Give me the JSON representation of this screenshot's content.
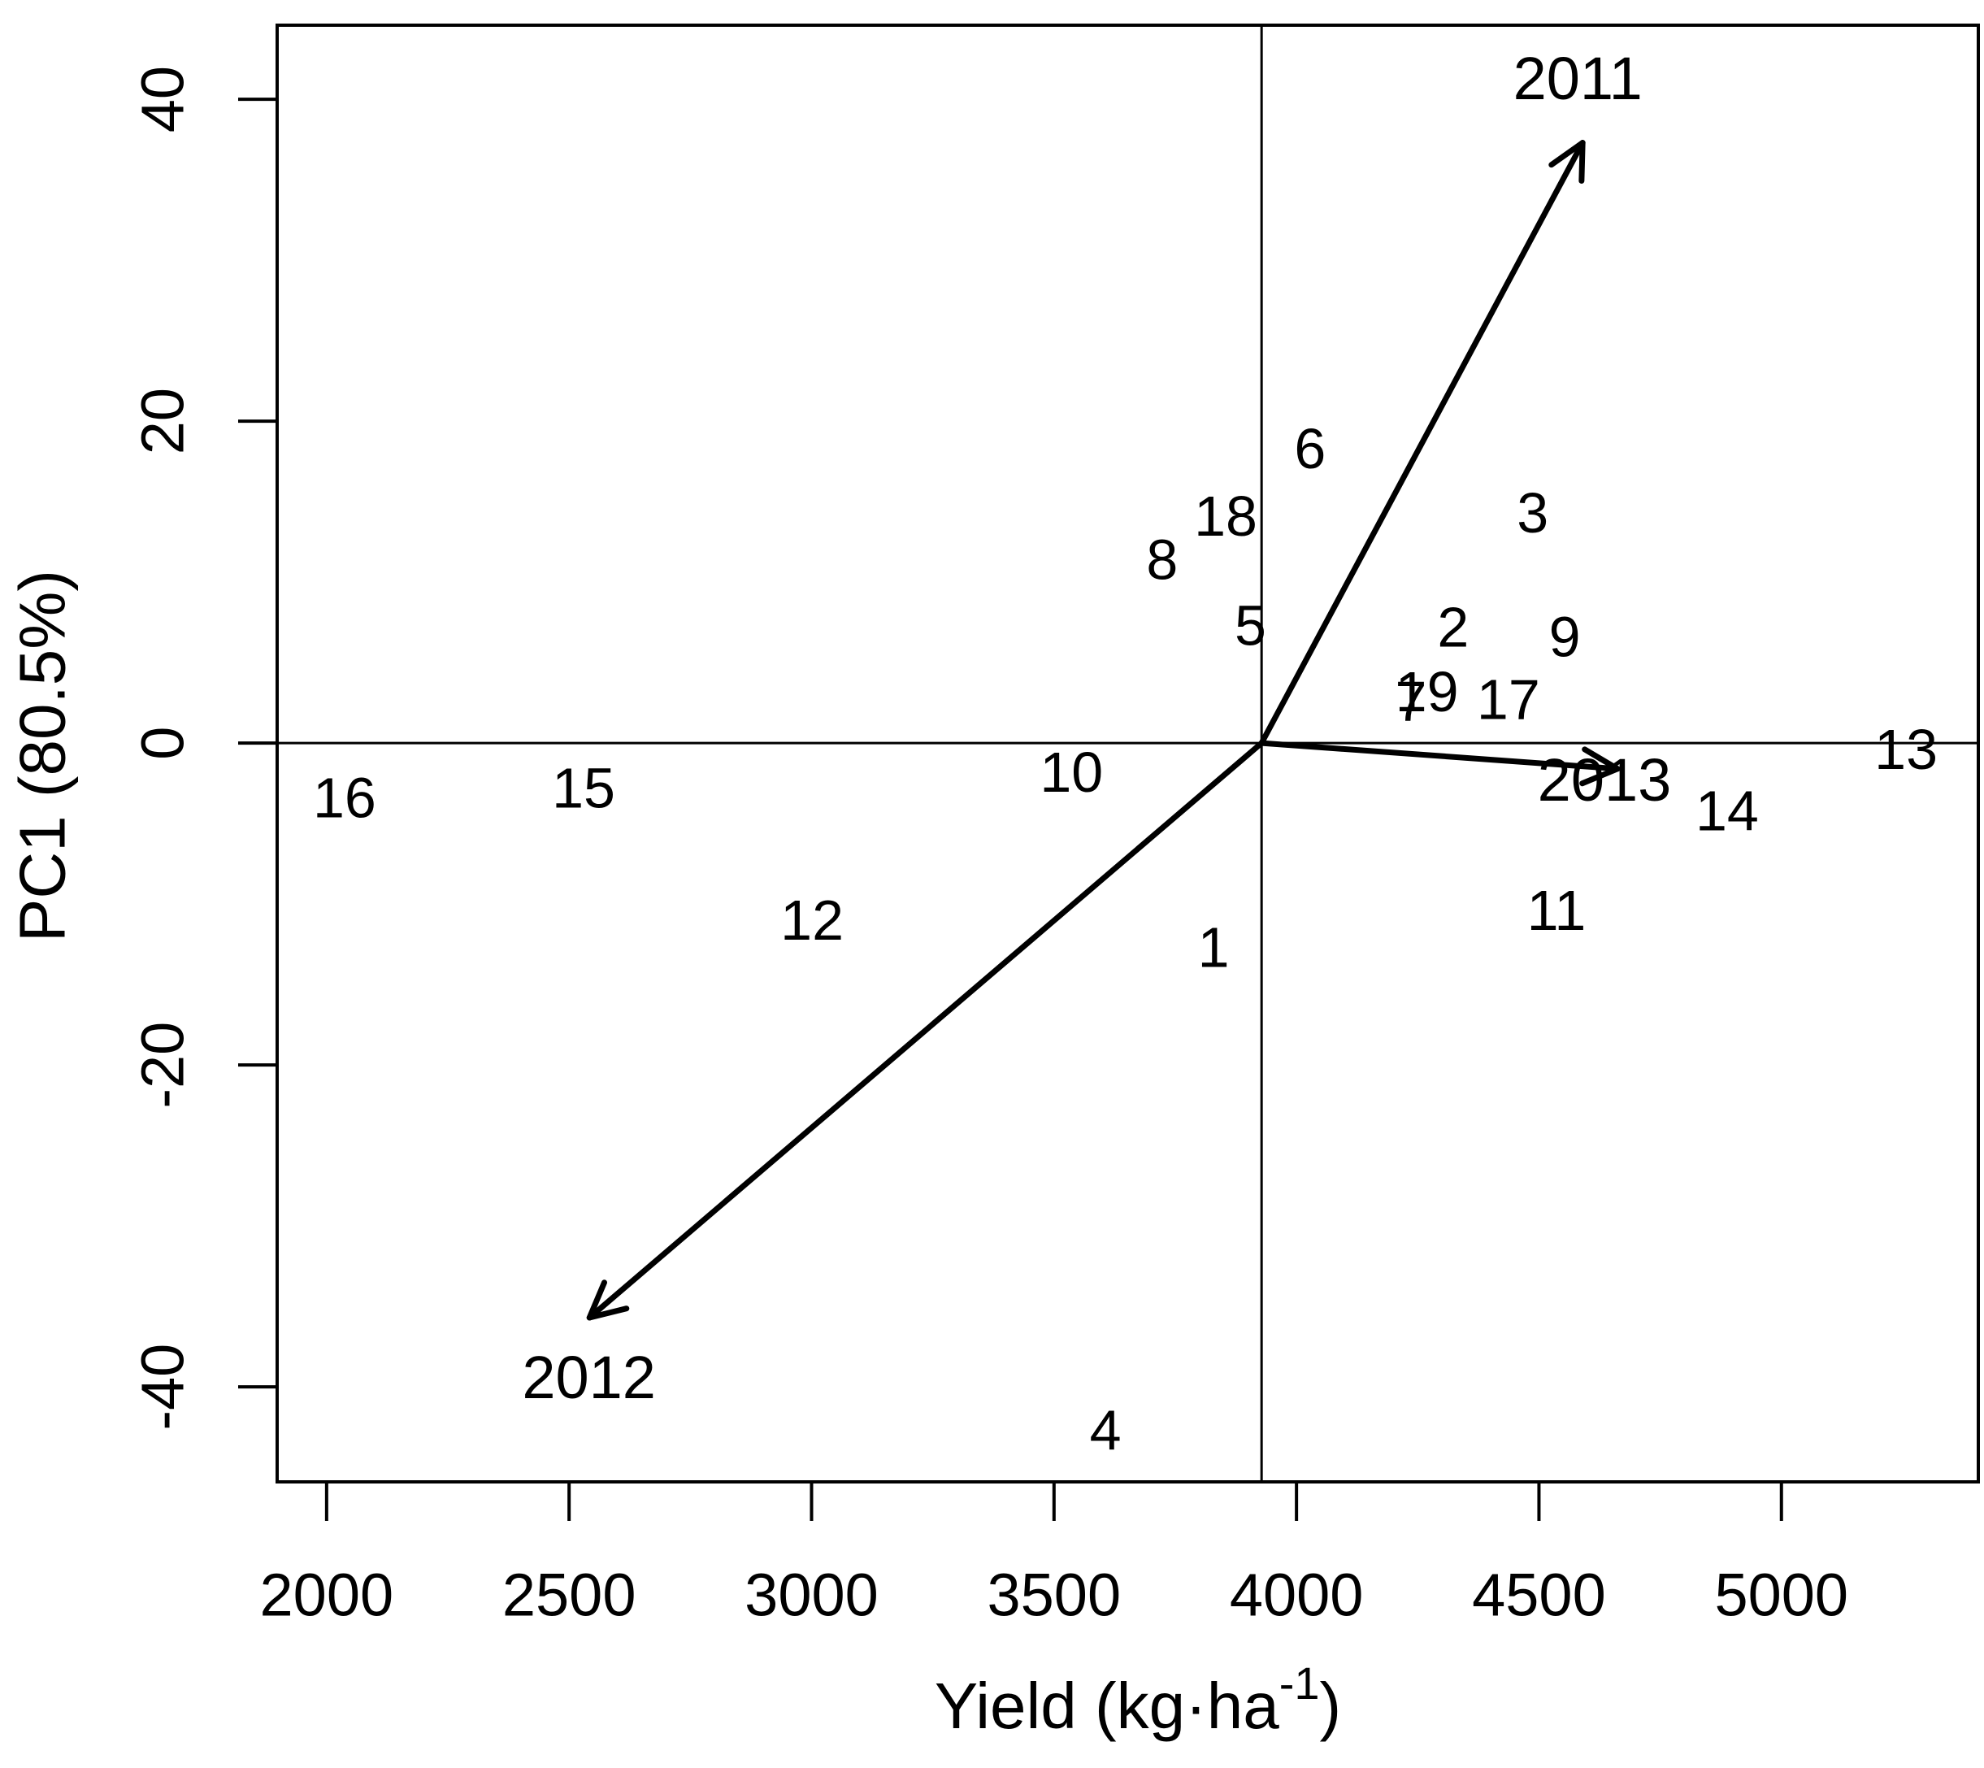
{
  "chart_data": {
    "type": "scatter",
    "subtype": "pca-biplot",
    "title": "",
    "xlabel_display": "Yield (kg·ha⁻¹)",
    "xlabel_parts": {
      "prefix": "Yield (kg·ha",
      "sup": "-1",
      "suffix": ")"
    },
    "ylabel": "PC1 (80.5%)",
    "x_ticks": [
      2000,
      2500,
      3000,
      3500,
      4000,
      4500,
      5000
    ],
    "y_ticks": [
      -40,
      -20,
      0,
      20,
      40
    ],
    "xlim": [
      1898,
      5406
    ],
    "ylim": [
      -45.9,
      44.6
    ],
    "grid": false,
    "legend": "none",
    "reference_lines": {
      "vertical_at_x": 3928,
      "horizontal_at_y": 0
    },
    "vector_origin": {
      "x": 3928,
      "y": 0
    },
    "points": [
      {
        "label": "1",
        "x": 3829,
        "y": -12.7
      },
      {
        "label": "2",
        "x": 4323,
        "y": 7.2
      },
      {
        "label": "3",
        "x": 4487,
        "y": 14.3
      },
      {
        "label": "4",
        "x": 3606,
        "y": -42.7
      },
      {
        "label": "5",
        "x": 3905,
        "y": 7.3
      },
      {
        "label": "6",
        "x": 4028,
        "y": 18.3
      },
      {
        "label": "7",
        "x": 4236,
        "y": 2.6
      },
      {
        "label": "8",
        "x": 3723,
        "y": 11.4
      },
      {
        "label": "9",
        "x": 4553,
        "y": 6.6
      },
      {
        "label": "10",
        "x": 3536,
        "y": -1.8
      },
      {
        "label": "11",
        "x": 4536,
        "y": -10.4
      },
      {
        "label": "12",
        "x": 3001,
        "y": -11.0
      },
      {
        "label": "13",
        "x": 5257,
        "y": -0.4
      },
      {
        "label": "14",
        "x": 4888,
        "y": -4.2
      },
      {
        "label": "15",
        "x": 2530,
        "y": -2.8
      },
      {
        "label": "16",
        "x": 2037,
        "y": -3.4
      },
      {
        "label": "17",
        "x": 4437,
        "y": 2.7
      },
      {
        "label": "18",
        "x": 3854,
        "y": 14.1
      },
      {
        "label": "19",
        "x": 4269,
        "y": 3.2
      }
    ],
    "vectors": [
      {
        "label": "2011",
        "tip_x": 4590,
        "tip_y": 37.3,
        "label_x": 4580,
        "label_y": 41.3
      },
      {
        "label": "2012",
        "tip_x": 2542,
        "tip_y": -35.7,
        "label_x": 2541,
        "label_y": -39.4
      },
      {
        "label": "2013",
        "tip_x": 4662,
        "tip_y": -1.6,
        "label_x": 4635,
        "label_y": -2.3
      }
    ],
    "colors": {
      "axis": "#000000",
      "point_labels": "#000000",
      "vector_arrows": "#000000",
      "year_labels": "#7d7d7d",
      "background": "#ffffff"
    }
  }
}
